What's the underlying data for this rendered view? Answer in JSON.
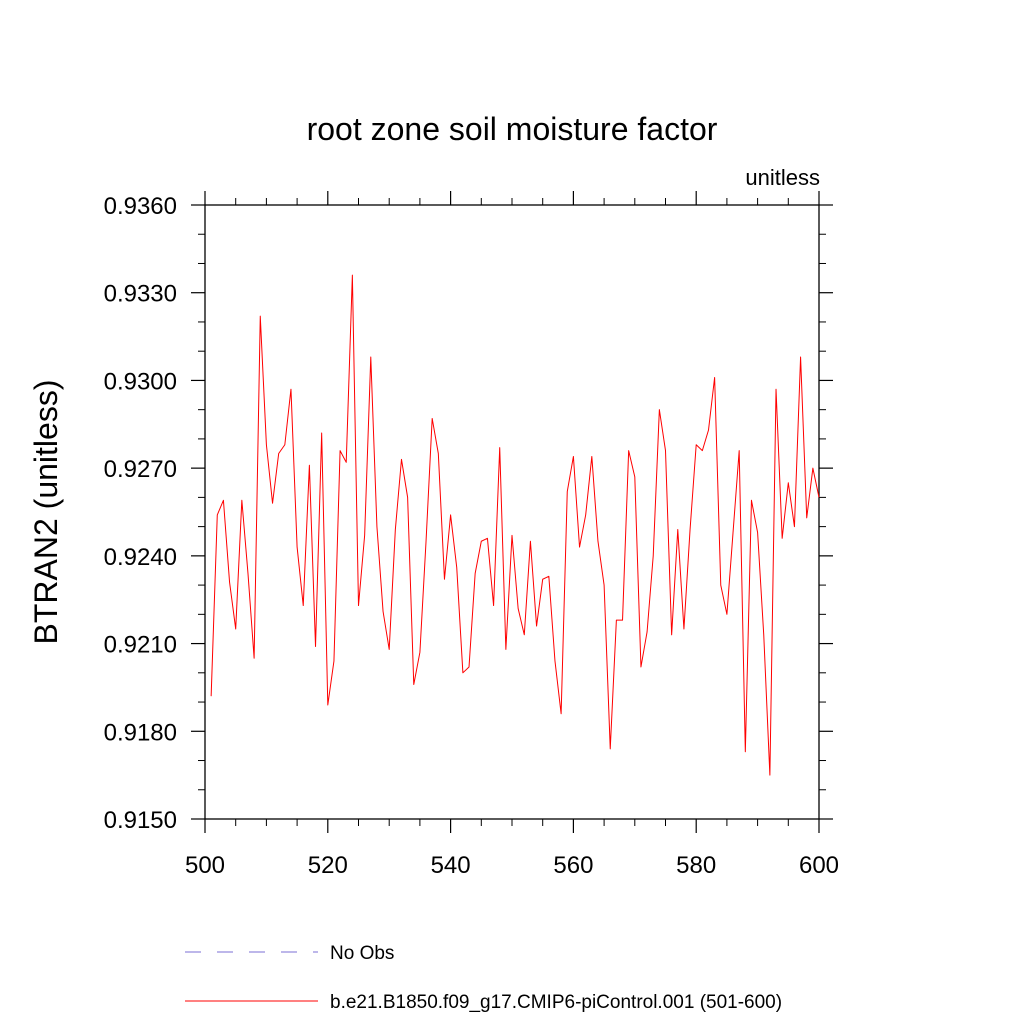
{
  "chart_data": {
    "type": "line",
    "title": "root zone soil moisture factor",
    "subtitle_right": "unitless",
    "xlabel": "",
    "ylabel": "BTRAN2  (unitless)",
    "xlim": [
      500,
      600
    ],
    "ylim": [
      0.915,
      0.936
    ],
    "x_ticks": [
      500,
      520,
      540,
      560,
      580,
      600
    ],
    "x_tick_labels": [
      "500",
      "520",
      "540",
      "560",
      "580",
      "600"
    ],
    "y_ticks": [
      0.915,
      0.918,
      0.921,
      0.924,
      0.927,
      0.93,
      0.933,
      0.936
    ],
    "y_tick_labels": [
      "0.9150",
      "0.9180",
      "0.9210",
      "0.9240",
      "0.9270",
      "0.9300",
      "0.9330",
      "0.9360"
    ],
    "grid": false,
    "legend_position": "bottom-left",
    "legend": [
      {
        "label": "No Obs",
        "color": "#7b6fd6",
        "style": "dashed"
      },
      {
        "label": "b.e21.B1850.f09_g17.CMIP6-piControl.001 (501-600)",
        "color": "#ff0000",
        "style": "solid"
      }
    ],
    "series": [
      {
        "name": "b.e21.B1850.f09_g17.CMIP6-piControl.001 (501-600)",
        "color": "#ff0000",
        "x": [
          501,
          502,
          503,
          504,
          505,
          506,
          507,
          508,
          509,
          510,
          511,
          512,
          513,
          514,
          515,
          516,
          517,
          518,
          519,
          520,
          521,
          522,
          523,
          524,
          525,
          526,
          527,
          528,
          529,
          530,
          531,
          532,
          533,
          534,
          535,
          536,
          537,
          538,
          539,
          540,
          541,
          542,
          543,
          544,
          545,
          546,
          547,
          548,
          549,
          550,
          551,
          552,
          553,
          554,
          555,
          556,
          557,
          558,
          559,
          560,
          561,
          562,
          563,
          564,
          565,
          566,
          567,
          568,
          569,
          570,
          571,
          572,
          573,
          574,
          575,
          576,
          577,
          578,
          579,
          580,
          581,
          582,
          583,
          584,
          585,
          586,
          587,
          588,
          589,
          590,
          591,
          592,
          593,
          594,
          595,
          596,
          597,
          598,
          599,
          600
        ],
        "values": [
          0.9192,
          0.9254,
          0.9259,
          0.9231,
          0.9215,
          0.9259,
          0.9234,
          0.9205,
          0.9322,
          0.9278,
          0.9258,
          0.9275,
          0.9278,
          0.9297,
          0.9243,
          0.9223,
          0.9271,
          0.9209,
          0.9282,
          0.9189,
          0.9204,
          0.9276,
          0.9272,
          0.9336,
          0.9223,
          0.9247,
          0.9308,
          0.925,
          0.9221,
          0.9208,
          0.9249,
          0.9273,
          0.926,
          0.9196,
          0.9207,
          0.9245,
          0.9287,
          0.9275,
          0.9232,
          0.9254,
          0.9236,
          0.92,
          0.9202,
          0.9234,
          0.9245,
          0.9246,
          0.9223,
          0.9277,
          0.9208,
          0.9247,
          0.9222,
          0.9213,
          0.9245,
          0.9216,
          0.9232,
          0.9233,
          0.9204,
          0.9186,
          0.9262,
          0.9274,
          0.9243,
          0.9254,
          0.9274,
          0.9245,
          0.923,
          0.9174,
          0.9218,
          0.9218,
          0.9276,
          0.9267,
          0.9202,
          0.9214,
          0.924,
          0.929,
          0.9276,
          0.9213,
          0.9249,
          0.9215,
          0.9249,
          0.9278,
          0.9276,
          0.9283,
          0.9301,
          0.923,
          0.922,
          0.9248,
          0.9276,
          0.9173,
          0.9259,
          0.9248,
          0.9213,
          0.9165,
          0.9297,
          0.9246,
          0.9265,
          0.925,
          0.9308,
          0.9253,
          0.927,
          0.926
        ]
      }
    ]
  }
}
